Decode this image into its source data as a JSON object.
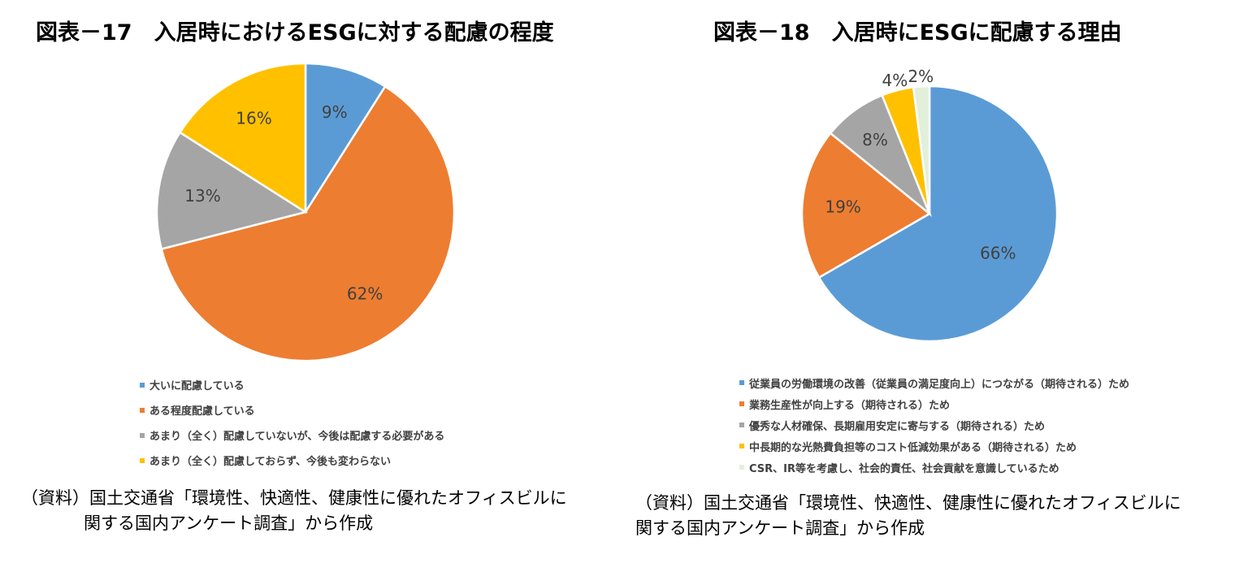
{
  "colors": {
    "blue": "#5b9bd5",
    "orange": "#ed7d31",
    "gray": "#a5a5a5",
    "yellow": "#ffc000",
    "light_green": "#e2efda"
  },
  "chart_data": [
    {
      "type": "pie",
      "title": "図表－17　入居時におけるESGに対する配慮の程度",
      "series": [
        {
          "label": "大いに配慮している",
          "value": 9,
          "display": "9%",
          "color": "#5b9bd5"
        },
        {
          "label": "ある程度配慮している",
          "value": 62,
          "display": "62%",
          "color": "#ed7d31"
        },
        {
          "label": "あまり（全く）配慮していないが、今後は配慮する必要がある",
          "value": 13,
          "display": "13%",
          "color": "#a5a5a5"
        },
        {
          "label": "あまり（全く）配慮しておらず、今後も変わらない",
          "value": 16,
          "display": "16%",
          "color": "#ffc000"
        }
      ],
      "legend_position": "bottom"
    },
    {
      "type": "pie",
      "title": "図表－18　入居時にESGに配慮する理由",
      "series": [
        {
          "label": "従業員の労働環境の改善（従業員の満足度向上）につながる（期待される）ため",
          "value": 66,
          "display": "66%",
          "color": "#5b9bd5"
        },
        {
          "label": "業務生産性が向上する（期待される）ため",
          "value": 19,
          "display": "19%",
          "color": "#ed7d31"
        },
        {
          "label": "優秀な人材確保、長期雇用安定に寄与する（期待される）ため",
          "value": 8,
          "display": "8%",
          "color": "#a5a5a5"
        },
        {
          "label": "中長期的な光熱費負担等のコスト低減効果がある（期待される）ため",
          "value": 4,
          "display": "4%",
          "color": "#ffc000"
        },
        {
          "label": "CSR、IR等を考慮し、社会的責任、社会貢献を意識しているため",
          "value": 2,
          "display": "2%",
          "color": "#e2efda"
        }
      ],
      "legend_position": "bottom"
    }
  ],
  "sources": [
    {
      "line1": "（資料）国土交通省「環境性、快適性、健康性に優れたオフィスビルに",
      "line2": "関する国内アンケート調査」から作成"
    },
    {
      "line1": "（資料）国土交通省「環境性、快適性、健康性に優れたオフィスビルに",
      "line2": "関する国内アンケート調査」から作成"
    }
  ]
}
